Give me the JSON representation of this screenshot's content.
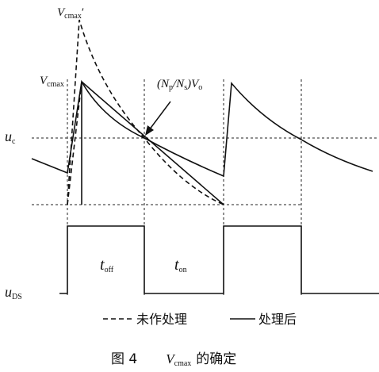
{
  "labels": {
    "vcmax_prime": {
      "main": "V",
      "sub": "cmax",
      "suffix": "′"
    },
    "vcmax": {
      "main": "V",
      "sub": "cmax"
    },
    "ratio": [
      "(N",
      "p",
      "/N",
      "s",
      ")V",
      "o"
    ],
    "uc": {
      "main": "u",
      "sub": "c"
    },
    "uds": {
      "main": "u",
      "sub": "DS"
    },
    "toff": {
      "main": "t",
      "sub": "off"
    },
    "ton": {
      "main": "t",
      "sub": "on"
    }
  },
  "legend": {
    "dashed": "未作处理",
    "solid": "处理后"
  },
  "caption": {
    "figure": "图 4",
    "main": "V",
    "sub": "cmax",
    "rest": "的确定"
  }
}
